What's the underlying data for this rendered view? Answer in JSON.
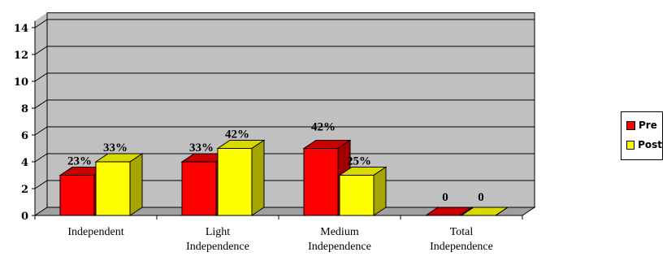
{
  "chart_data": {
    "type": "bar",
    "categories": [
      [
        "Independent"
      ],
      [
        "Light",
        "Independence"
      ],
      [
        "Medium",
        "Independence"
      ],
      [
        "Total",
        "Independence"
      ]
    ],
    "series": [
      {
        "name": "Pre",
        "values": [
          3,
          4,
          5,
          0
        ],
        "labels": [
          "23%",
          "33%",
          "42%",
          "0"
        ],
        "color": "#ff0000",
        "side": "#a00000",
        "top": "#c80000"
      },
      {
        "name": "Post",
        "values": [
          4,
          5,
          3,
          0
        ],
        "labels": [
          "33%",
          "42%",
          "25%",
          "0"
        ],
        "color": "#ffff00",
        "side": "#a5a500",
        "top": "#d9d900"
      }
    ],
    "yticks": [
      0,
      2,
      4,
      6,
      8,
      10,
      12,
      14
    ],
    "ylim": [
      0,
      14.5
    ],
    "grid": true,
    "legend_position": "right",
    "wall_color": "#c0c0c0"
  }
}
